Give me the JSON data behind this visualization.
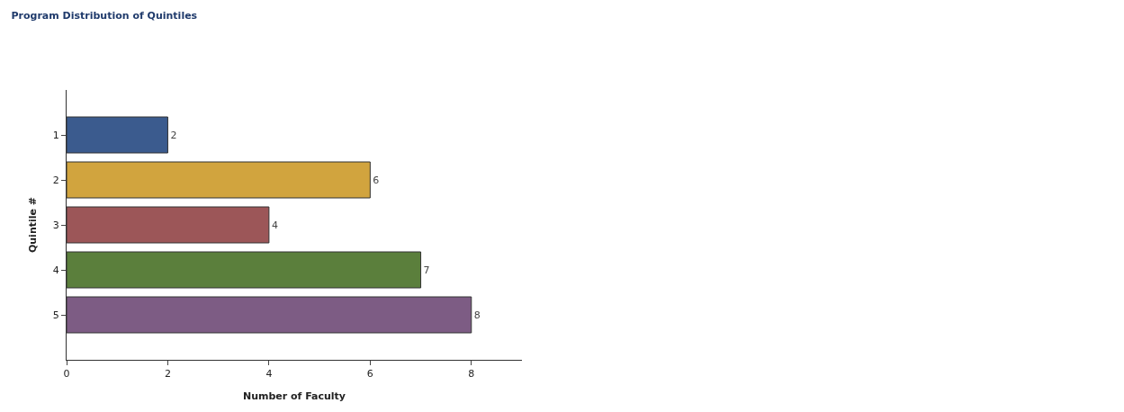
{
  "chart_data": {
    "type": "bar",
    "orientation": "horizontal",
    "title": "Program Distribution of Quintiles",
    "xlabel": "Number of Faculty",
    "ylabel": "Quintile #",
    "categories": [
      "1",
      "2",
      "3",
      "4",
      "5"
    ],
    "values": [
      2,
      6,
      4,
      7,
      8
    ],
    "colors": [
      "#3b5b8e",
      "#d1a43e",
      "#9c5658",
      "#5b7f3c",
      "#7d5c84"
    ],
    "xlim": [
      0,
      9
    ],
    "xticks": [
      0,
      2,
      4,
      6,
      8
    ],
    "data_labels": true
  }
}
